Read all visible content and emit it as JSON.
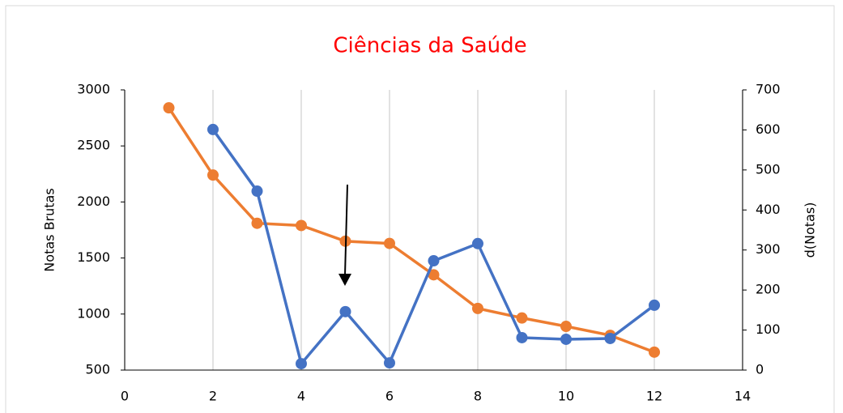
{
  "chart_data": {
    "type": "line",
    "title": "Ciências da Saúde",
    "ylabel": "Notas Brutas",
    "y2label": "d(Notas)",
    "x": [
      1,
      2,
      3,
      4,
      5,
      6,
      7,
      8,
      9,
      10,
      11,
      12
    ],
    "series": [
      {
        "name": "Notas Brutas",
        "color": "#ED7D31",
        "values": [
          2840,
          2240,
          1810,
          1790,
          1650,
          1630,
          1350,
          1050,
          965,
          890,
          810,
          660
        ]
      },
      {
        "name": "d(Notas)",
        "color": "#4472C4",
        "axis": "y2",
        "values": [
          null,
          601,
          447,
          16,
          146,
          18,
          273,
          316,
          81,
          77,
          79,
          162
        ]
      }
    ],
    "xlim": [
      0,
      14
    ],
    "xticks": [
      0,
      2,
      4,
      6,
      8,
      10,
      12,
      14
    ],
    "ylim": [
      500,
      3000
    ],
    "yticks": [
      500,
      1000,
      1500,
      2000,
      2500,
      3000
    ],
    "y2lim": [
      0,
      700
    ],
    "y2ticks": [
      0,
      100,
      200,
      300,
      400,
      500,
      600,
      700
    ],
    "grid": "x"
  }
}
